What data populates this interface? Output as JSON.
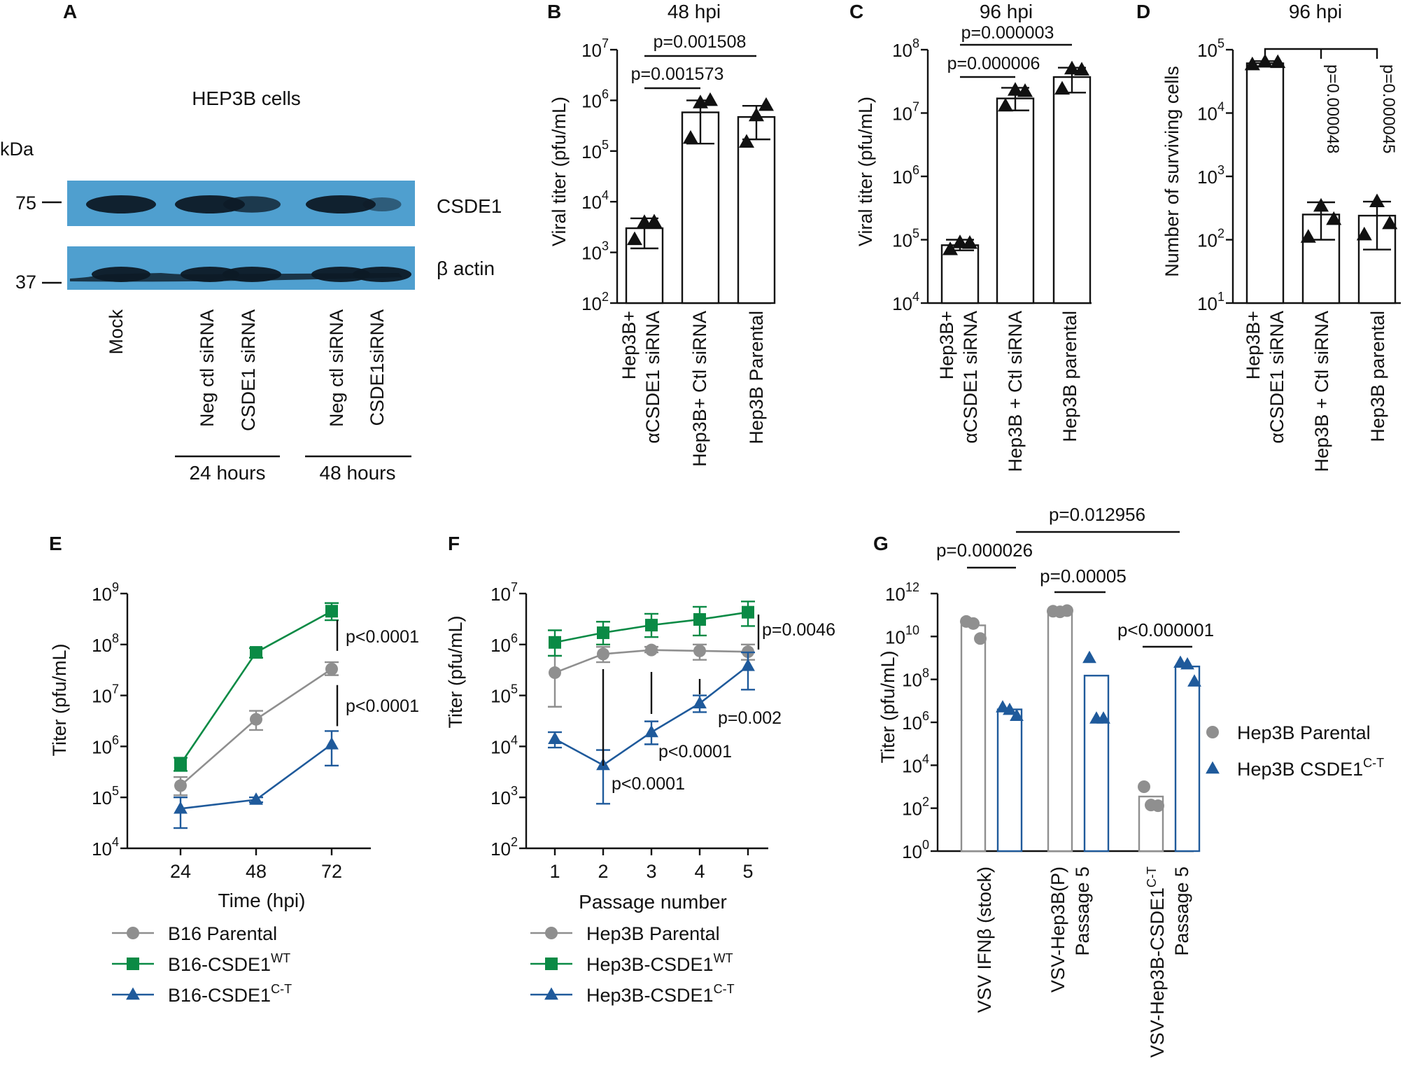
{
  "colors": {
    "gray": "#8f8f8f",
    "green": "#0a8a45",
    "blue": "#1f5a9b",
    "black": "#111111",
    "blot_bg": "#4f9fcf",
    "blot_band": "#0d1a26"
  },
  "panelA": {
    "letter": "A",
    "title": "HEP3B cells",
    "kda": "kDa",
    "markers": [
      "75",
      "37"
    ],
    "bands": [
      "CSDE1",
      "β actin"
    ],
    "lanes": [
      "Mock",
      "Neg ctl siRNA",
      "CSDE1 siRNA",
      "Neg ctl siRNA",
      "CSDE1siRNA"
    ],
    "groups": [
      "24 hours",
      "48 hours"
    ],
    "csde1_intensity": [
      1.0,
      1.0,
      0.7,
      1.0,
      0.25
    ],
    "actin_intensity": [
      1.0,
      1.0,
      1.0,
      1.0,
      1.0
    ]
  },
  "chart_data": [
    {
      "id": "B",
      "letter": "B",
      "type": "bar",
      "title": "48 hpi",
      "ylabel": "Viral titer (pfu/mL)",
      "ylog": true,
      "ylim": [
        100,
        10000000
      ],
      "ytick_exps": [
        "2",
        "3",
        "4",
        "5",
        "6",
        "7"
      ],
      "categories": [
        [
          "Hep3B+",
          "αCSDE1 siRNA"
        ],
        [
          "Hep3B+ Ctl siRNA"
        ],
        [
          "Hep3B Parental"
        ]
      ],
      "values": [
        3000,
        580000,
        470000
      ],
      "err_low": [
        1200,
        140000,
        170000
      ],
      "err_high": [
        4700,
        1000000,
        780000
      ],
      "points": [
        [
          1800,
          3900,
          4000
        ],
        [
          180000,
          900000,
          1000000
        ],
        [
          150000,
          500000,
          800000
        ]
      ],
      "comparisons": [
        {
          "label": "p=0.001573",
          "from": 0,
          "to": 1
        },
        {
          "label": "p=0.001508",
          "from": 0,
          "to": 2
        }
      ]
    },
    {
      "id": "C",
      "letter": "C",
      "type": "bar",
      "title": "96 hpi",
      "ylabel": "Viral titer (pfu/mL)",
      "ylog": true,
      "ylim": [
        10000,
        100000000
      ],
      "ytick_exps": [
        "4",
        "5",
        "6",
        "7",
        "8"
      ],
      "categories": [
        [
          "Hep3B+",
          "αCSDE1 siRNA"
        ],
        [
          "Hep3B + Ctl siRNA"
        ],
        [
          "Hep3B parental"
        ]
      ],
      "values": [
        82000,
        17000000,
        37000000
      ],
      "err_low": [
        68000,
        11000000,
        21000000
      ],
      "err_high": [
        100000,
        25000000,
        52000000
      ],
      "points": [
        [
          70000,
          90000,
          88000
        ],
        [
          13000000,
          23000000,
          22000000
        ],
        [
          24000000,
          50000000,
          48000000
        ]
      ],
      "comparisons": [
        {
          "label": "p=0.000006",
          "from": 0,
          "to": 1
        },
        {
          "label": "p=0.000003",
          "from": 0,
          "to": 2
        }
      ]
    },
    {
      "id": "D",
      "letter": "D",
      "type": "bar",
      "title": "96 hpi",
      "ylabel": "Number of surviving cells",
      "ylog": true,
      "ylim": [
        10,
        100000
      ],
      "ytick_exps": [
        "1",
        "2",
        "3",
        "4",
        "5"
      ],
      "categories": [
        [
          "Hep3B+",
          "αCSDE1 siRNA"
        ],
        [
          "Hep3B + Ctl siRNA"
        ],
        [
          "Hep3B parental"
        ]
      ],
      "values": [
        61000,
        250,
        240
      ],
      "err_low": [
        55000,
        100,
        70
      ],
      "err_high": [
        66000,
        390,
        400
      ],
      "points": [
        [
          58000,
          64000,
          63000
        ],
        [
          110,
          340,
          210
        ],
        [
          120,
          400,
          180
        ]
      ],
      "comparisons": [
        {
          "label": "p=0.000048",
          "from": 0,
          "to": 1
        },
        {
          "label": "p=0.000045",
          "from": 0,
          "to": 2
        }
      ]
    },
    {
      "id": "E",
      "letter": "E",
      "type": "line",
      "xlabel": "Time (hpi)",
      "ylabel": "Titer (pfu/mL)",
      "ylog": true,
      "ylim": [
        10000,
        1000000000
      ],
      "ytick_exps": [
        "4",
        "5",
        "6",
        "7",
        "8",
        "9"
      ],
      "x": [
        24,
        48,
        72
      ],
      "xticks": [
        "24",
        "48",
        "72"
      ],
      "series": [
        {
          "name": "B16 Parental",
          "sup": "",
          "color": "gray",
          "marker": "circle",
          "values": [
            170000,
            3400000,
            33000000
          ],
          "err_low": [
            110000,
            2100000,
            25000000
          ],
          "err_high": [
            250000,
            5000000,
            45000000
          ]
        },
        {
          "name": "B16-CSDE1",
          "sup": "WT",
          "color": "green",
          "marker": "square",
          "values": [
            450000,
            70000000,
            450000000
          ],
          "err_low": [
            330000,
            55000000,
            300000000
          ],
          "err_high": [
            600000,
            85000000,
            650000000
          ]
        },
        {
          "name": "B16-CSDE1",
          "sup": "C-T",
          "color": "blue",
          "marker": "triangle",
          "values": [
            60000,
            90000,
            1100000
          ],
          "err_low": [
            25000,
            80000,
            420000
          ],
          "err_high": [
            100000,
            100000,
            2000000
          ]
        }
      ],
      "annotations": [
        {
          "label": "p<0.0001",
          "x": 72,
          "y_from": 80000000,
          "y_to": 180000000000
        },
        {
          "label": "p<0.0001",
          "x": 72,
          "y_from": 2500000,
          "y_to": 16000000
        }
      ]
    },
    {
      "id": "F",
      "letter": "F",
      "type": "line",
      "xlabel": "Passage number",
      "ylabel": "Titer (pfu/mL)",
      "ylog": true,
      "ylim": [
        100,
        10000000
      ],
      "ytick_exps": [
        "2",
        "3",
        "4",
        "5",
        "6",
        "7"
      ],
      "x": [
        1,
        2,
        3,
        4,
        5
      ],
      "xticks": [
        "1",
        "2",
        "3",
        "4",
        "5"
      ],
      "series": [
        {
          "name": "Hep3B Parental",
          "sup": "",
          "color": "gray",
          "marker": "circle",
          "values": [
            280000,
            650000,
            780000,
            750000,
            720000
          ],
          "err_low": [
            60000,
            450000,
            700000,
            500000,
            500000
          ],
          "err_high": [
            600000,
            900000,
            900000,
            1000000,
            1000000
          ]
        },
        {
          "name": "Hep3B-CSDE1",
          "sup": "WT",
          "color": "green",
          "marker": "square",
          "values": [
            1100000,
            1700000,
            2400000,
            3100000,
            4300000
          ],
          "err_low": [
            600000,
            1000000,
            1400000,
            1500000,
            2300000
          ],
          "err_high": [
            1900000,
            2800000,
            4000000,
            5500000,
            7000000
          ]
        },
        {
          "name": "Hep3B-CSDE1",
          "sup": "C-T",
          "color": "blue",
          "marker": "triangle",
          "values": [
            14000,
            4300,
            19000,
            70000,
            380000
          ],
          "err_low": [
            9500,
            750,
            11000,
            47000,
            130000
          ],
          "err_high": [
            19000,
            8500,
            31000,
            100000,
            700000
          ]
        }
      ],
      "annotations": [
        {
          "label": "p=0.0046",
          "x": 5.25
        },
        {
          "label": "p<0.0001",
          "x": 2
        },
        {
          "label": "p<0.0001",
          "x": 3
        },
        {
          "label": "p=0.002",
          "x": 4
        }
      ]
    },
    {
      "id": "G",
      "letter": "G",
      "type": "bar",
      "ylabel": "Titer (pfu/mL)",
      "ylog": true,
      "ylim": [
        1,
        1000000000000
      ],
      "ytick_exps": [
        "0",
        "2",
        "4",
        "6",
        "8",
        "10",
        "12"
      ],
      "groups": [
        [
          "VSV IFNβ (stock)"
        ],
        [
          "VSV-Hep3B(P)",
          "Passage 5"
        ],
        [
          "VSV-Hep3B-CSDE1",
          "Passage 5"
        ]
      ],
      "group_sup": [
        "",
        "",
        "C-T"
      ],
      "series": [
        {
          "name": "Hep3B Parental",
          "sup": "",
          "color": "gray",
          "marker": "circle",
          "values": [
            33000000000,
            150000000000,
            350
          ],
          "points": [
            [
              50000000000,
              8000000000,
              40000000000
            ],
            [
              150000000000,
              160000000000,
              140000000000
            ],
            [
              1000,
              130,
              140
            ]
          ]
        },
        {
          "name": "Hep3B CSDE1",
          "sup": "C-T",
          "color": "blue",
          "marker": "triangle",
          "values": [
            4000000,
            150000000,
            400000000
          ],
          "points": [
            [
              5000000,
              2000000,
              3800000
            ],
            [
              1000000000,
              1500000,
              1500000
            ],
            [
              600000000,
              80000000,
              500000000
            ]
          ]
        }
      ],
      "comparisons": [
        {
          "label": "p=0.000026",
          "group": 0
        },
        {
          "label": "p=0.00005",
          "group": 1
        },
        {
          "label": "p<0.000001",
          "group": 2
        },
        {
          "label": "p=0.012956",
          "from_group": 1,
          "to_group": 2
        }
      ]
    }
  ]
}
